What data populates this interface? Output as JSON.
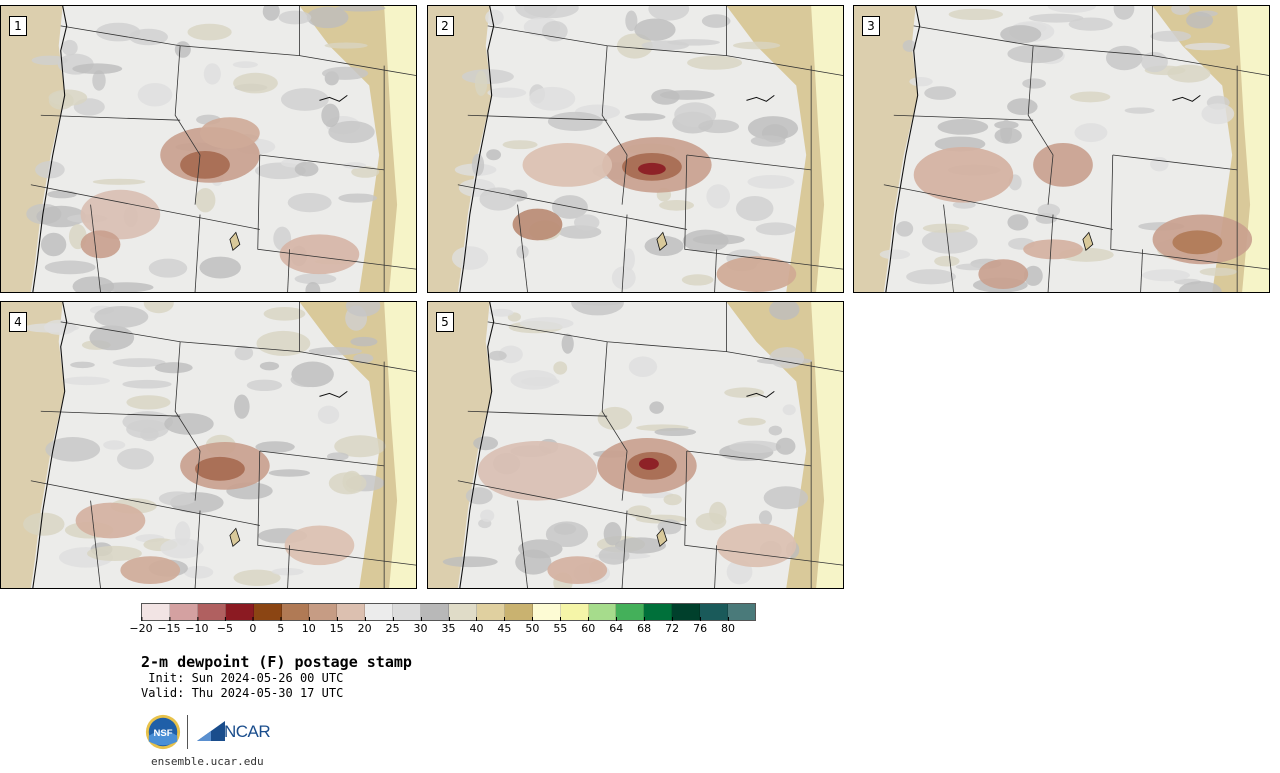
{
  "panels": [
    {
      "label": "1"
    },
    {
      "label": "2"
    },
    {
      "label": "3"
    },
    {
      "label": "4"
    },
    {
      "label": "5"
    }
  ],
  "colorbar": {
    "ticks": [
      "−20",
      "−15",
      "−10",
      "−5",
      "0",
      "5",
      "10",
      "15",
      "20",
      "25",
      "30",
      "35",
      "40",
      "45",
      "50",
      "55",
      "60",
      "64",
      "68",
      "72",
      "76",
      "80"
    ],
    "colors": [
      "#f2e4e4",
      "#d4a1a1",
      "#b06060",
      "#8b1a22",
      "#8b4513",
      "#b07a55",
      "#c69c84",
      "#dcc0b0",
      "#ececec",
      "#dcdcdc",
      "#b8b8b8",
      "#e0dcc8",
      "#e0d0a0",
      "#c9b270",
      "#fdfbd4",
      "#f5f5a8",
      "#a6dc8c",
      "#44b05a",
      "#00703a",
      "#00402c",
      "#1a5a5a",
      "#4a7a7a"
    ]
  },
  "title": "2-m dewpoint (F) postage stamp",
  "init": " Init: Sun 2024-05-26 00 UTC",
  "valid": "Valid: Thu 2024-05-30 17 UTC",
  "logos": {
    "ncar": "NCAR",
    "nsf": "NSF"
  },
  "site": "ensemble.ucar.edu"
}
